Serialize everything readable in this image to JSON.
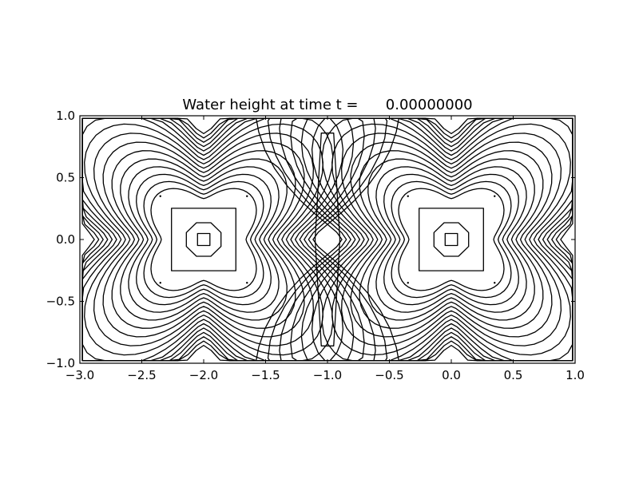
{
  "chart_data": {
    "type": "contour",
    "title": "Water height at time t =      0.00000000",
    "xlim": [
      -3.0,
      1.0
    ],
    "ylim": [
      -1.0,
      1.0
    ],
    "x_ticks": [
      "−3.0",
      "−2.5",
      "−2.0",
      "−1.5",
      "−1.0",
      "−0.5",
      "0.0",
      "0.5",
      "1.0"
    ],
    "y_ticks": [
      "−1.0",
      "−0.5",
      "0.0",
      "0.5",
      "1.0"
    ],
    "x_tick_values": [
      -3.0,
      -2.5,
      -2.0,
      -1.5,
      -1.0,
      -0.5,
      0.0,
      0.5,
      1.0
    ],
    "y_tick_values": [
      -1.0,
      -0.5,
      0.0,
      0.5,
      1.0
    ],
    "grid": false,
    "line_color": "#000000",
    "lobes": [
      {
        "center": [
          -2.0,
          0.0
        ]
      },
      {
        "center": [
          0.0,
          0.0
        ]
      }
    ],
    "contour_levels": 16
  }
}
